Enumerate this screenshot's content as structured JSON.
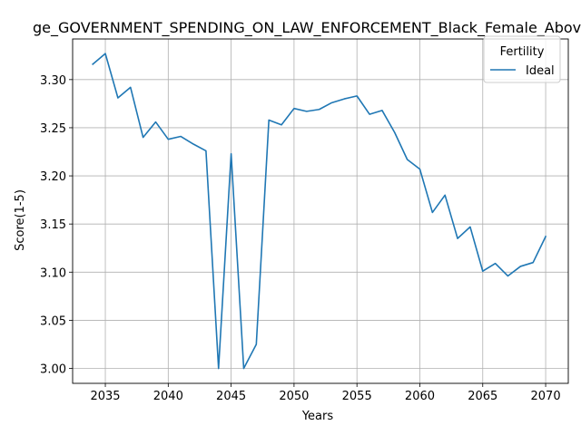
{
  "chart_data": {
    "type": "line",
    "title": "ge_GOVERNMENT_SPENDING_ON_LAW_ENFORCEMENT_Black_Female_Above",
    "xlabel": "Years",
    "ylabel": "Score(1-5)",
    "xlim": [
      2032.4,
      2071.8
    ],
    "ylim": [
      2.9845,
      3.3422
    ],
    "x_ticks": [
      2035,
      2040,
      2045,
      2050,
      2055,
      2060,
      2065,
      2070
    ],
    "y_ticks": [
      3.0,
      3.05,
      3.1,
      3.15,
      3.2,
      3.25,
      3.3
    ],
    "x_tick_labels": [
      "2035",
      "2040",
      "2045",
      "2050",
      "2055",
      "2060",
      "2065",
      "2070"
    ],
    "y_tick_labels": [
      "3.00",
      "3.05",
      "3.10",
      "3.15",
      "3.20",
      "3.25",
      "3.30"
    ],
    "grid": true,
    "legend": {
      "title": "Fertility",
      "placement": "top-right"
    },
    "series": [
      {
        "name": "Ideal",
        "color": "#1f77b4",
        "x": [
          2034,
          2035,
          2036,
          2037,
          2038,
          2039,
          2040,
          2041,
          2042,
          2043,
          2044,
          2045,
          2046,
          2047,
          2048,
          2049,
          2050,
          2051,
          2052,
          2053,
          2054,
          2055,
          2056,
          2057,
          2058,
          2059,
          2060,
          2061,
          2062,
          2063,
          2064,
          2065,
          2066,
          2067,
          2068,
          2069,
          2070
        ],
        "y": [
          3.316,
          3.327,
          3.281,
          3.292,
          3.24,
          3.256,
          3.238,
          3.241,
          3.233,
          3.226,
          3.0,
          3.223,
          3.0,
          3.025,
          3.258,
          3.253,
          3.27,
          3.267,
          3.269,
          3.276,
          3.28,
          3.283,
          3.264,
          3.268,
          3.245,
          3.217,
          3.207,
          3.162,
          3.18,
          3.135,
          3.147,
          3.101,
          3.109,
          3.096,
          3.106,
          3.11,
          3.137
        ]
      }
    ]
  }
}
